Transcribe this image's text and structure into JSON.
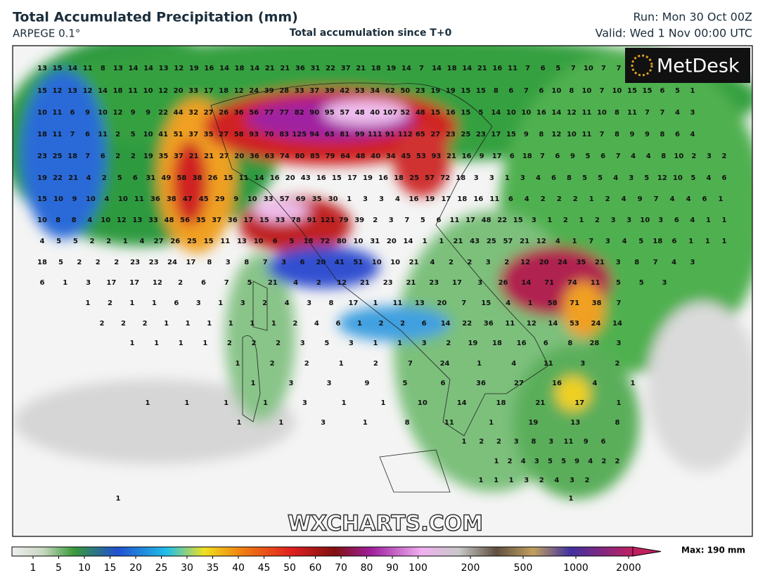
{
  "header": {
    "title": "Total Accumulated Precipitation (mm)",
    "model": "ARPEGE 0.1°",
    "subtitle": "Total accumulation since T+0",
    "run": "Run: Mon 30 Oct 00Z",
    "valid": "Valid: Wed 1 Nov 00:00 UTC"
  },
  "logo": "MetDesk",
  "watermark": "WXCHARTS.COM",
  "legend": {
    "ticks": [
      1,
      5,
      10,
      15,
      20,
      25,
      30,
      35,
      40,
      45,
      50,
      60,
      70,
      80,
      90,
      100,
      200,
      500,
      1000,
      2000
    ],
    "max": "Max: 190 mm"
  },
  "map": {
    "rows": [
      [
        13,
        15,
        14,
        11,
        8,
        13,
        14,
        14,
        13,
        12,
        19,
        16,
        14,
        18,
        14,
        21,
        21,
        36,
        31,
        22,
        37,
        21,
        18,
        19,
        14,
        7,
        14,
        18,
        14,
        21,
        16,
        11,
        7,
        6,
        5,
        7,
        10,
        7,
        7
      ],
      [
        15,
        12,
        13,
        12,
        14,
        18,
        11,
        10,
        12,
        20,
        33,
        17,
        18,
        12,
        24,
        39,
        28,
        33,
        37,
        39,
        42,
        53,
        34,
        62,
        50,
        23,
        19,
        19,
        15,
        15,
        8,
        6,
        7,
        6,
        10,
        8,
        10,
        7,
        10,
        15,
        15,
        6,
        5,
        1
      ],
      [
        10,
        11,
        6,
        9,
        10,
        12,
        9,
        9,
        22,
        44,
        32,
        27,
        26,
        36,
        56,
        77,
        77,
        82,
        90,
        95,
        57,
        48,
        40,
        107,
        52,
        48,
        15,
        16,
        15,
        5,
        14,
        10,
        10,
        16,
        14,
        12,
        11,
        10,
        8,
        11,
        7,
        7,
        4,
        3
      ],
      [
        18,
        11,
        7,
        6,
        11,
        2,
        5,
        10,
        41,
        51,
        37,
        35,
        27,
        58,
        93,
        70,
        83,
        125,
        94,
        63,
        81,
        99,
        111,
        91,
        112,
        65,
        27,
        23,
        25,
        23,
        17,
        15,
        9,
        8,
        12,
        10,
        11,
        7,
        8,
        9,
        9,
        8,
        6,
        4
      ],
      [
        23,
        25,
        18,
        7,
        6,
        2,
        2,
        19,
        35,
        37,
        21,
        21,
        27,
        20,
        36,
        63,
        74,
        80,
        85,
        79,
        64,
        48,
        40,
        34,
        45,
        53,
        93,
        21,
        16,
        9,
        17,
        6,
        18,
        7,
        6,
        9,
        5,
        6,
        7,
        4,
        4,
        8,
        10,
        2,
        3,
        2
      ],
      [
        19,
        22,
        21,
        4,
        2,
        5,
        6,
        31,
        49,
        58,
        38,
        26,
        15,
        11,
        14,
        16,
        20,
        43,
        16,
        15,
        17,
        19,
        16,
        18,
        25,
        57,
        72,
        18,
        3,
        3,
        1,
        3,
        4,
        6,
        8,
        5,
        5,
        4,
        3,
        5,
        12,
        10,
        5,
        4,
        6
      ],
      [
        15,
        10,
        9,
        10,
        4,
        10,
        11,
        36,
        38,
        47,
        45,
        29,
        9,
        10,
        33,
        57,
        69,
        35,
        30,
        1,
        3,
        3,
        4,
        16,
        19,
        17,
        18,
        16,
        11,
        6,
        4,
        2,
        2,
        2,
        1,
        2,
        4,
        9,
        7,
        4,
        4,
        6,
        1
      ],
      [
        10,
        8,
        8,
        4,
        10,
        12,
        13,
        33,
        48,
        56,
        35,
        37,
        36,
        17,
        15,
        33,
        78,
        91,
        121,
        79,
        39,
        2,
        3,
        7,
        5,
        6,
        11,
        17,
        48,
        22,
        15,
        3,
        1,
        2,
        1,
        2,
        3,
        3,
        10,
        3,
        6,
        4,
        1,
        1
      ],
      [
        4,
        5,
        5,
        2,
        2,
        1,
        4,
        27,
        26,
        25,
        15,
        11,
        13,
        10,
        6,
        5,
        18,
        72,
        80,
        10,
        31,
        20,
        14,
        1,
        1,
        21,
        43,
        25,
        57,
        21,
        12,
        4,
        1,
        7,
        3,
        4,
        5,
        18,
        6,
        1,
        1,
        1
      ],
      [
        18,
        5,
        2,
        2,
        2,
        23,
        23,
        24,
        17,
        8,
        3,
        8,
        7,
        3,
        6,
        20,
        41,
        51,
        10,
        10,
        21,
        4,
        2,
        2,
        3,
        2,
        12,
        20,
        24,
        35,
        21,
        3,
        8,
        7,
        4,
        3
      ],
      [
        6,
        1,
        3,
        17,
        17,
        12,
        2,
        6,
        7,
        5,
        21,
        4,
        2,
        12,
        21,
        23,
        21,
        23,
        17,
        3,
        26,
        14,
        71,
        74,
        11,
        5,
        5,
        3
      ],
      [
        1,
        2,
        1,
        1,
        6,
        3,
        1,
        3,
        2,
        4,
        3,
        8,
        17,
        1,
        11,
        13,
        20,
        7,
        15,
        4,
        1,
        58,
        71,
        38,
        7
      ],
      [
        2,
        2,
        2,
        1,
        1,
        1,
        1,
        1,
        1,
        2,
        4,
        6,
        1,
        2,
        2,
        6,
        14,
        22,
        36,
        11,
        12,
        14,
        53,
        24,
        14
      ],
      [
        1,
        1,
        1,
        1,
        2,
        2,
        2,
        3,
        5,
        3,
        1,
        1,
        3,
        2,
        19,
        18,
        16,
        6,
        8,
        28,
        3
      ],
      [
        1,
        2,
        2,
        1,
        2,
        7,
        24,
        1,
        4,
        11,
        3,
        2
      ],
      [
        1,
        3,
        3,
        9,
        5,
        6,
        36,
        27,
        16,
        4,
        1
      ],
      [
        1,
        1,
        1,
        1,
        3,
        1,
        1,
        10,
        14,
        18,
        21,
        17,
        1
      ],
      [
        1,
        1,
        3,
        1,
        8,
        11,
        1,
        19,
        13,
        8
      ],
      [
        1,
        2,
        2,
        3,
        8,
        3,
        11,
        9,
        6
      ],
      [
        1,
        2,
        4,
        3,
        5,
        5,
        9,
        4,
        2,
        2
      ],
      [
        1,
        1,
        1,
        3,
        2,
        4,
        3,
        2
      ],
      [
        1,
        1
      ]
    ]
  }
}
